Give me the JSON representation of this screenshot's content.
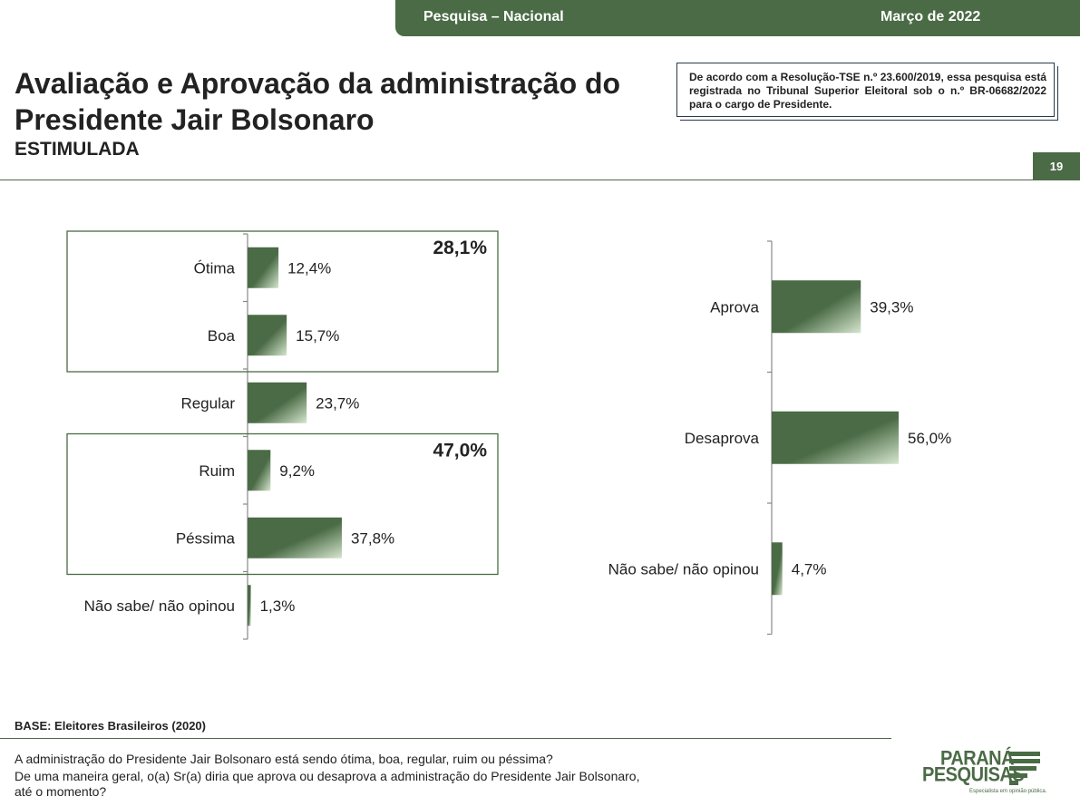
{
  "header": {
    "survey": "Pesquisa – Nacional",
    "date": "Março de 2022",
    "page_number": "19"
  },
  "title": "Avaliação e Aprovação da administração do Presidente Jair Bolsonaro",
  "subtitle": "ESTIMULADA",
  "tse_notice": "De acordo com a Resolução-TSE n.º 23.600/2019, essa pesquisa está registrada no Tribunal Superior Eleitoral sob o n.º BR-06682/2022 para o cargo de Presidente.",
  "colors": {
    "brand_green": "#4a6b45",
    "bar_light": "#d6e6cf"
  },
  "chart_data": [
    {
      "type": "bar",
      "orientation": "horizontal",
      "categories": [
        "Ótima",
        "Boa",
        "Regular",
        "Ruim",
        "Péssima",
        "Não sabe/ não opinou"
      ],
      "values": [
        12.4,
        15.7,
        23.7,
        9.2,
        37.8,
        1.3
      ],
      "value_labels": [
        "12,4%",
        "15,7%",
        "23,7%",
        "9,2%",
        "37,8%",
        "1,3%"
      ],
      "groups": [
        {
          "label": "28,1%",
          "members": [
            "Ótima",
            "Boa"
          ]
        },
        {
          "label": "47,0%",
          "members": [
            "Ruim",
            "Péssima"
          ]
        }
      ],
      "xlim": [
        0,
        100
      ]
    },
    {
      "type": "bar",
      "orientation": "horizontal",
      "categories": [
        "Aprova",
        "Desaprova",
        "Não sabe/ não opinou"
      ],
      "values": [
        39.3,
        56.0,
        4.7
      ],
      "value_labels": [
        "39,3%",
        "56,0%",
        "4,7%"
      ],
      "xlim": [
        0,
        100
      ]
    }
  ],
  "footer": {
    "base": "BASE: Eleitores Brasileiros (2020)",
    "questions": [
      "A administração do Presidente Jair Bolsonaro está sendo ótima, boa, regular, ruim ou péssima?",
      "De uma maneira geral, o(a) Sr(a) diria que aprova ou desaprova a administração do Presidente Jair Bolsonaro,",
      "até o momento?"
    ],
    "logo_line1": "PARANÁ",
    "logo_line2": "PESQUISAS",
    "logo_tagline": "Especialista em opinião pública."
  }
}
